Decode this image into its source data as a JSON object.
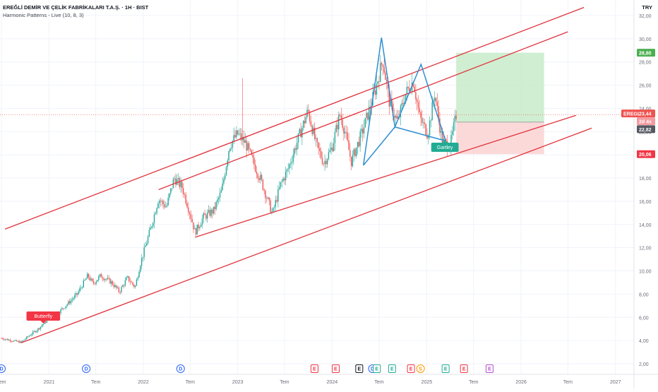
{
  "header": {
    "symbol_line": "EREĞLİ DEMİR VE ÇELİK FABRİKALARI T.A.Ş. · 1H · BIST",
    "indicator_line": "Harmonic Patterns - Live (10, 8, 3)",
    "currency": "TRY"
  },
  "colors": {
    "up": "#26a69a",
    "down": "#ef5350",
    "trend": "#e0343d",
    "pattern": "#2f8fd1",
    "target_zone": "#c8ebc9",
    "stop_zone": "#fbd2d2",
    "grid": "#f0f3fa"
  },
  "price_labels": {
    "target": "28,80",
    "symbol": "EREGL",
    "current": "23,44",
    "countdown": "2d 4s",
    "entry": "22,82",
    "stop": "20,06"
  },
  "pattern_labels": {
    "butterfly": "Butterfly",
    "gartley": "Gartley"
  },
  "chart_data": {
    "type": "candlestick",
    "ylim": [
      1,
      32
    ],
    "y_ticks": [
      2,
      4,
      6,
      8,
      10,
      12,
      14,
      16,
      18,
      20,
      22,
      24,
      26,
      28,
      30,
      32
    ],
    "y_tick_labels": [
      "2,00",
      "4,00",
      "6,00",
      "8,00",
      "10,00",
      "12,00",
      "14,00",
      "16,00",
      "18,00",
      "20,00",
      "22,00",
      "24,00",
      "26,00",
      "28,00",
      "30,00",
      "32,00"
    ],
    "xlim": [
      "2020-07-01",
      "2027-02-28"
    ],
    "x_ticks": [
      {
        "label": "Tem",
        "date": "2020-07-01"
      },
      {
        "label": "2021",
        "date": "2021-01-01"
      },
      {
        "label": "Tem",
        "date": "2021-07-01"
      },
      {
        "label": "2022",
        "date": "2022-01-01"
      },
      {
        "label": "Tem",
        "date": "2022-07-01"
      },
      {
        "label": "2023",
        "date": "2023-01-01"
      },
      {
        "label": "Tem",
        "date": "2023-07-01"
      },
      {
        "label": "2024",
        "date": "2024-01-01"
      },
      {
        "label": "Tem",
        "date": "2024-07-01"
      },
      {
        "label": "2025",
        "date": "2025-01-01"
      },
      {
        "label": "Tem",
        "date": "2025-07-01"
      },
      {
        "label": "2026",
        "date": "2026-01-01"
      },
      {
        "label": "Tem",
        "date": "2026-07-01"
      },
      {
        "label": "2027",
        "date": "2027-01-01"
      }
    ],
    "price_path": [
      [
        "2020-07-01",
        4.2
      ],
      [
        "2020-08-10",
        4.0
      ],
      [
        "2020-09-15",
        3.85
      ],
      [
        "2020-10-15",
        4.4
      ],
      [
        "2020-11-20",
        5.0
      ],
      [
        "2020-12-31",
        5.9
      ],
      [
        "2021-02-15",
        6.6
      ],
      [
        "2021-03-20",
        7.3
      ],
      [
        "2021-04-20",
        8.0
      ],
      [
        "2021-05-31",
        9.6
      ],
      [
        "2021-06-20",
        8.9
      ],
      [
        "2021-07-20",
        9.6
      ],
      [
        "2021-08-31",
        9.0
      ],
      [
        "2021-09-30",
        8.2
      ],
      [
        "2021-10-31",
        9.4
      ],
      [
        "2021-11-30",
        8.6
      ],
      [
        "2021-12-20",
        10.6
      ],
      [
        "2022-01-31",
        13.8
      ],
      [
        "2022-02-28",
        16.2
      ],
      [
        "2022-03-31",
        15.5
      ],
      [
        "2022-04-30",
        18.0
      ],
      [
        "2022-05-31",
        17.2
      ],
      [
        "2022-06-30",
        15.0
      ],
      [
        "2022-07-20",
        13.3
      ],
      [
        "2022-08-20",
        14.6
      ],
      [
        "2022-09-30",
        15.2
      ],
      [
        "2022-10-31",
        16.9
      ],
      [
        "2022-11-30",
        20.8
      ],
      [
        "2022-12-31",
        21.8
      ],
      [
        "2023-01-31",
        21.0
      ],
      [
        "2023-03-01",
        19.4
      ],
      [
        "2023-04-01",
        17.8
      ],
      [
        "2023-05-15",
        14.9
      ],
      [
        "2023-06-15",
        17.4
      ],
      [
        "2023-07-15",
        18.8
      ],
      [
        "2023-08-20",
        21.2
      ],
      [
        "2023-09-30",
        23.8
      ],
      [
        "2023-10-31",
        20.9
      ],
      [
        "2023-11-30",
        19.3
      ],
      [
        "2023-12-31",
        20.6
      ],
      [
        "2024-01-31",
        23.5
      ],
      [
        "2024-02-20",
        22.0
      ],
      [
        "2024-03-15",
        19.4
      ],
      [
        "2024-04-30",
        22.2
      ],
      [
        "2024-06-15",
        25.5
      ],
      [
        "2024-07-15",
        28.2
      ],
      [
        "2024-08-10",
        24.5
      ],
      [
        "2024-09-10",
        22.8
      ],
      [
        "2024-10-10",
        25.2
      ],
      [
        "2024-11-10",
        26.4
      ],
      [
        "2024-12-05",
        23.2
      ],
      [
        "2025-01-05",
        21.8
      ],
      [
        "2025-02-01",
        25.3
      ],
      [
        "2025-03-01",
        21.2
      ],
      [
        "2025-04-01",
        20.7
      ],
      [
        "2025-04-25",
        23.44
      ]
    ],
    "trendlines": [
      {
        "from": [
          "2020-09-15",
          3.8
        ],
        "to": [
          "2026-10-01",
          22.3
        ]
      },
      {
        "from": [
          "2022-07-20",
          12.9
        ],
        "to": [
          "2026-08-01",
          23.4
        ]
      },
      {
        "from": [
          "2020-07-15",
          13.6
        ],
        "to": [
          "2026-09-01",
          32.7
        ]
      },
      {
        "from": [
          "2022-03-01",
          17.0
        ],
        "to": [
          "2026-07-01",
          30.6
        ]
      }
    ],
    "gartley": [
      [
        "2024-05-01",
        19.1
      ],
      [
        "2024-07-10",
        30.1
      ],
      [
        "2024-08-31",
        22.4
      ],
      [
        "2024-12-10",
        27.8
      ],
      [
        "2025-03-15",
        21.2
      ]
    ],
    "target_zone": {
      "x0": "2025-04-25",
      "x1": "2026-03-31",
      "y0": 22.82,
      "y1": 28.8
    },
    "stop_zone": {
      "x0": "2025-04-25",
      "x1": "2026-03-31",
      "y0": 20.06,
      "y1": 22.82
    },
    "current_price": 23.44,
    "events": [
      {
        "date": "2020-07-01",
        "label": "D",
        "kind": "dividend"
      },
      {
        "date": "2021-05-25",
        "label": "D",
        "kind": "dividend"
      },
      {
        "date": "2022-05-25",
        "label": "D",
        "kind": "dividend"
      },
      {
        "date": "2023-10-25",
        "label": "E",
        "kind": "earnings-neg"
      },
      {
        "date": "2024-01-15",
        "label": "E",
        "kind": "earnings-neg"
      },
      {
        "date": "2024-04-15",
        "label": "E",
        "kind": "earnings-black"
      },
      {
        "date": "2024-06-05",
        "label": "D",
        "kind": "dividend"
      },
      {
        "date": "2024-06-22",
        "label": "E",
        "kind": "earnings-pos"
      },
      {
        "date": "2024-08-20",
        "label": "E",
        "kind": "earnings-pos"
      },
      {
        "date": "2024-11-01",
        "label": "E",
        "kind": "earnings-neg"
      },
      {
        "date": "2024-12-08",
        "label": "S",
        "kind": "split"
      },
      {
        "date": "2025-03-15",
        "label": "E",
        "kind": "earnings-pos"
      },
      {
        "date": "2025-05-25",
        "label": "E",
        "kind": "earnings-neg"
      },
      {
        "date": "2025-09-01",
        "label": "E",
        "kind": "earnings-future"
      }
    ]
  }
}
